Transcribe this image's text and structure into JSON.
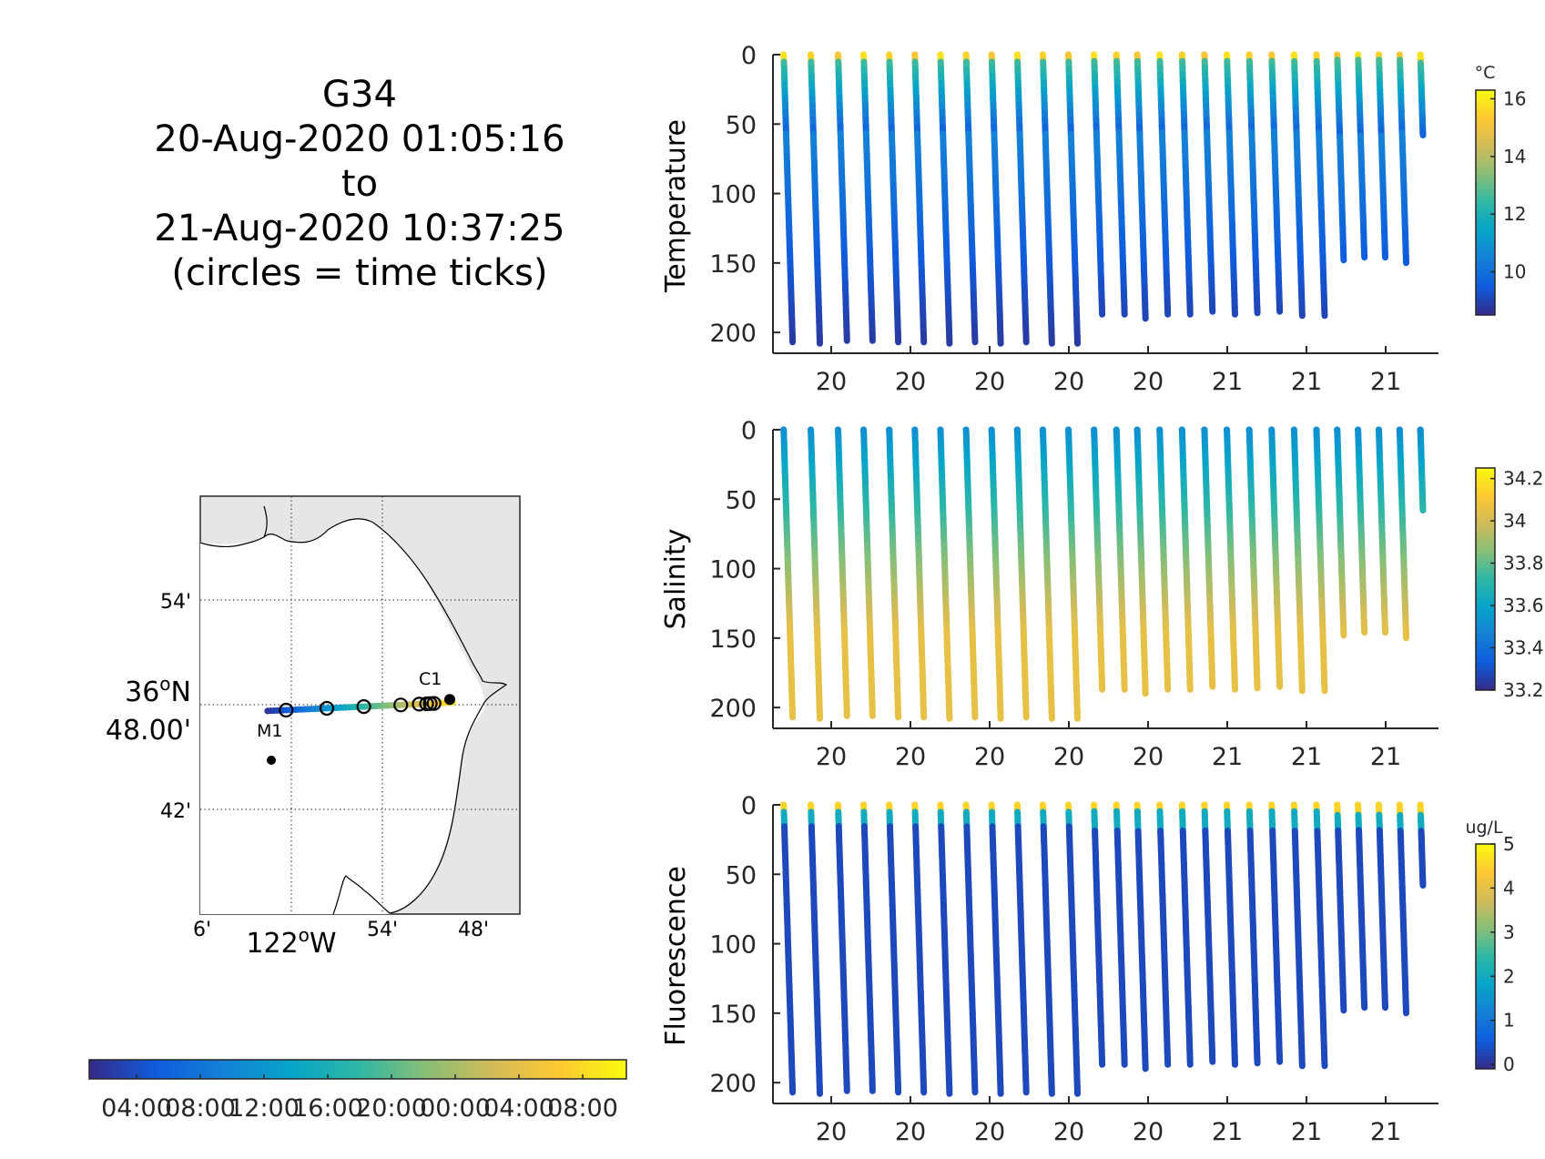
{
  "title": {
    "glider": "G34",
    "start": "20-Aug-2020 01:05:16",
    "to": "to",
    "end": "21-Aug-2020 10:37:25",
    "note": "(circles = time ticks)"
  },
  "colors": {
    "parula": [
      "#352a87",
      "#0f5cdd",
      "#1481d6",
      "#06a4ca",
      "#2eb7a4",
      "#87bf77",
      "#d1bb59",
      "#fec832",
      "#f9fb0e"
    ],
    "axis": "#262626",
    "map_land": "#e6e6e6",
    "map_sea": "#ffffff"
  },
  "chart_data": [
    {
      "type": "scatter",
      "name": "temperature-profiles",
      "ylabel": "Temperature",
      "colorbar_unit": "°C",
      "colorbar_ticks": [
        "10",
        "12",
        "14",
        "16"
      ],
      "clim": [
        8.5,
        16.3
      ],
      "ylim": [
        0,
        215
      ],
      "yticks": [
        "0",
        "50",
        "100",
        "150",
        "200"
      ],
      "xticks": [
        "20",
        "20",
        "20",
        "20",
        "20",
        "21",
        "21",
        "21"
      ],
      "profiles": [
        {
          "t": 0.2,
          "max_depth": 207
        },
        {
          "t": 1.9,
          "max_depth": 208
        },
        {
          "t": 3.6,
          "max_depth": 206
        },
        {
          "t": 5.2,
          "max_depth": 206
        },
        {
          "t": 6.8,
          "max_depth": 207
        },
        {
          "t": 8.4,
          "max_depth": 207
        },
        {
          "t": 10.0,
          "max_depth": 208
        },
        {
          "t": 11.6,
          "max_depth": 207
        },
        {
          "t": 13.2,
          "max_depth": 208
        },
        {
          "t": 14.8,
          "max_depth": 207
        },
        {
          "t": 16.4,
          "max_depth": 208
        },
        {
          "t": 18.0,
          "max_depth": 208
        },
        {
          "t": 19.6,
          "max_depth": 187
        },
        {
          "t": 21.0,
          "max_depth": 187
        },
        {
          "t": 22.3,
          "max_depth": 190
        },
        {
          "t": 23.7,
          "max_depth": 187
        },
        {
          "t": 25.1,
          "max_depth": 187
        },
        {
          "t": 26.5,
          "max_depth": 185
        },
        {
          "t": 27.9,
          "max_depth": 187
        },
        {
          "t": 29.3,
          "max_depth": 186
        },
        {
          "t": 30.7,
          "max_depth": 185
        },
        {
          "t": 32.1,
          "max_depth": 188
        },
        {
          "t": 33.5,
          "max_depth": 188
        },
        {
          "t": 34.8,
          "max_depth": 148
        },
        {
          "t": 36.1,
          "max_depth": 146
        },
        {
          "t": 37.4,
          "max_depth": 146
        },
        {
          "t": 38.7,
          "max_depth": 150
        },
        {
          "t": 40.0,
          "max_depth": 58
        }
      ],
      "surface_value": 15.8,
      "mid_value": 10.5,
      "deep_value": 8.8
    },
    {
      "type": "scatter",
      "name": "salinity-profiles",
      "ylabel": "Salinity",
      "colorbar_unit": "",
      "colorbar_ticks": [
        "33.2",
        "33.4",
        "33.6",
        "33.8",
        "34",
        "34.2"
      ],
      "clim": [
        33.2,
        34.25
      ],
      "ylim": [
        0,
        215
      ],
      "yticks": [
        "0",
        "50",
        "100",
        "150",
        "200"
      ],
      "xticks": [
        "20",
        "20",
        "20",
        "20",
        "20",
        "21",
        "21",
        "21"
      ],
      "surface_value": 33.5,
      "deep_value": 34.05
    },
    {
      "type": "scatter",
      "name": "fluorescence-profiles",
      "ylabel": "Fluorescence",
      "colorbar_unit": "ug/L",
      "colorbar_ticks": [
        "0",
        "1",
        "2",
        "3",
        "4",
        "5"
      ],
      "clim": [
        -0.1,
        5.0
      ],
      "ylim": [
        0,
        215
      ],
      "yticks": [
        "0",
        "50",
        "100",
        "150",
        "200"
      ],
      "xticks": [
        "20",
        "20",
        "20",
        "20",
        "20",
        "21",
        "21",
        "21"
      ],
      "surface_value": 4.5,
      "deep_value": 0.3
    },
    {
      "type": "scatter",
      "name": "glider-track-map",
      "lat_labels": [
        "54'",
        "42'"
      ],
      "lat_main": [
        "36",
        "N",
        "48.00'"
      ],
      "lon_labels": [
        "6'",
        "54'",
        "48'"
      ],
      "lon_main": [
        "122",
        "W"
      ],
      "degree_symbol": "o",
      "stations": [
        "M1",
        "C1"
      ],
      "track": [
        {
          "lon": -122.026,
          "lat": 36.794
        },
        {
          "lon": -121.823,
          "lat": 36.802
        }
      ],
      "time_tick_circles": 8,
      "time_colorbar_ticks": [
        "04:00",
        "08:00",
        "12:00",
        "16:00",
        "20:00",
        "00:00",
        "04:00",
        "08:00"
      ]
    }
  ]
}
